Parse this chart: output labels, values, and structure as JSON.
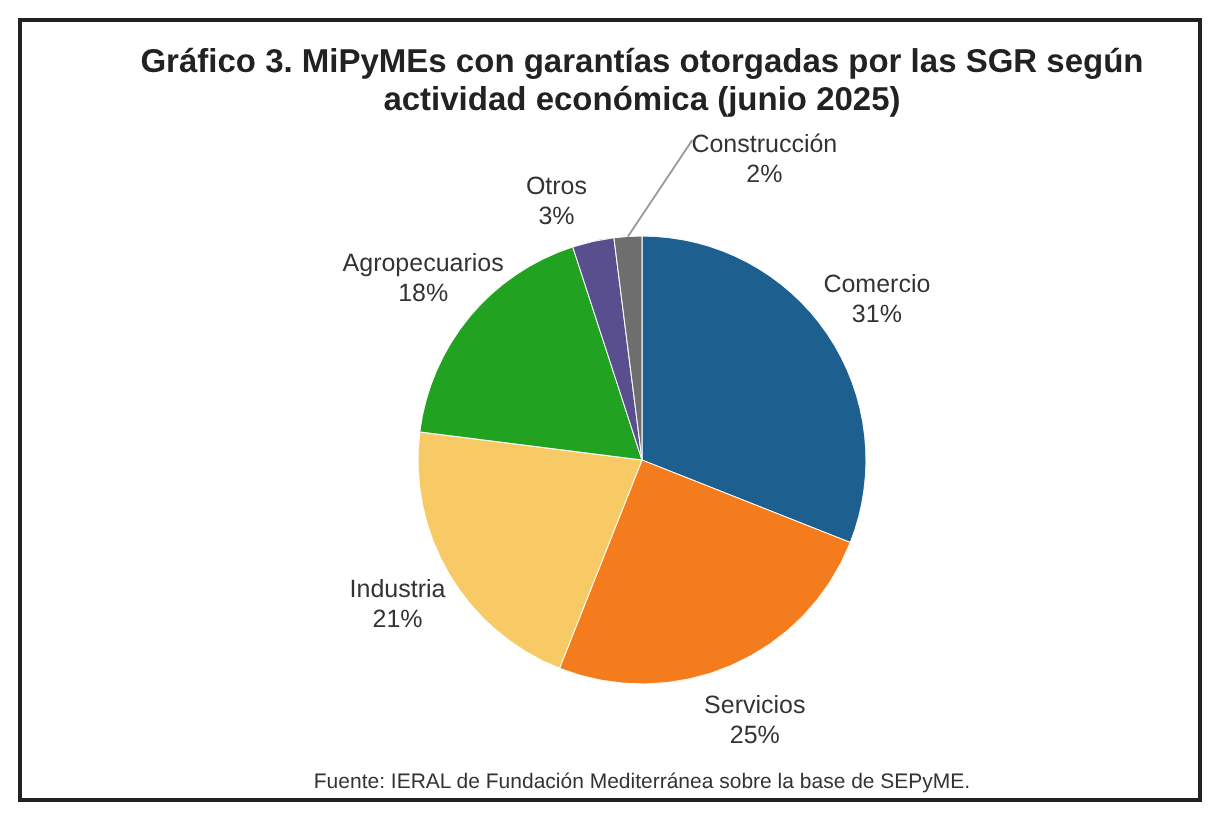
{
  "chart_data": {
    "type": "pie",
    "title": "Gráfico 3. MiPyMEs con garantías otorgadas por las SGR según actividad económica (junio 2025)",
    "categories": [
      "Comercio",
      "Servicios",
      "Industria",
      "Agropecuarios",
      "Otros",
      "Construcción"
    ],
    "values": [
      31,
      25,
      21,
      18,
      3,
      2
    ],
    "colors": [
      "#1d5f8e",
      "#f57c1c",
      "#f8ca66",
      "#21a321",
      "#5a4f8e",
      "#6e6e6e"
    ],
    "value_labels": [
      "31%",
      "25%",
      "21%",
      "18%",
      "3%",
      "2%"
    ],
    "annotations": [
      "Fuente: IERAL de Fundación Mediterránea sobre la base de SEPyME."
    ]
  }
}
